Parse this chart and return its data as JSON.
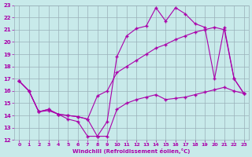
{
  "xlabel": "Windchill (Refroidissement éolien,°C)",
  "bg_color": "#c8eaea",
  "grid_color": "#9ab0b8",
  "line_color": "#aa00aa",
  "marker": "+",
  "xlim": [
    -0.5,
    23.5
  ],
  "ylim": [
    12,
    23
  ],
  "xticks": [
    0,
    1,
    2,
    3,
    4,
    5,
    6,
    7,
    8,
    9,
    10,
    11,
    12,
    13,
    14,
    15,
    16,
    17,
    18,
    19,
    20,
    21,
    22,
    23
  ],
  "yticks": [
    12,
    13,
    14,
    15,
    16,
    17,
    18,
    19,
    20,
    21,
    22,
    23
  ],
  "series": {
    "line1_zigzag": {
      "x": [
        0,
        1,
        2,
        3,
        4,
        5,
        6,
        7,
        8,
        9,
        10,
        11,
        12,
        13,
        14,
        15,
        16,
        17,
        18,
        19,
        20,
        21,
        22,
        23
      ],
      "y": [
        16.8,
        16.0,
        14.3,
        14.4,
        14.1,
        13.7,
        13.5,
        12.3,
        12.3,
        13.5,
        18.8,
        20.5,
        21.1,
        21.3,
        22.8,
        21.7,
        22.8,
        22.3,
        21.5,
        21.2,
        17.0,
        21.2,
        17.0,
        15.8
      ]
    },
    "line2_diagonal": {
      "x": [
        0,
        1,
        2,
        3,
        4,
        5,
        6,
        7,
        8,
        9,
        10,
        11,
        12,
        13,
        14,
        15,
        16,
        17,
        18,
        19,
        20,
        21,
        22,
        23
      ],
      "y": [
        16.8,
        16.0,
        14.3,
        14.5,
        14.1,
        14.0,
        13.9,
        13.7,
        15.6,
        16.0,
        17.5,
        18.0,
        18.5,
        19.0,
        19.5,
        19.8,
        20.2,
        20.5,
        20.8,
        21.0,
        21.2,
        21.0,
        17.0,
        15.8
      ]
    },
    "line3_flat": {
      "x": [
        0,
        1,
        2,
        3,
        4,
        5,
        6,
        7,
        8,
        9,
        10,
        11,
        12,
        13,
        14,
        15,
        16,
        17,
        18,
        19,
        20,
        21,
        22,
        23
      ],
      "y": [
        16.8,
        16.0,
        14.3,
        14.5,
        14.1,
        14.0,
        13.9,
        13.7,
        12.3,
        12.3,
        14.5,
        15.0,
        15.3,
        15.5,
        15.7,
        15.3,
        15.4,
        15.5,
        15.7,
        15.9,
        16.1,
        16.3,
        16.0,
        15.8
      ]
    }
  }
}
